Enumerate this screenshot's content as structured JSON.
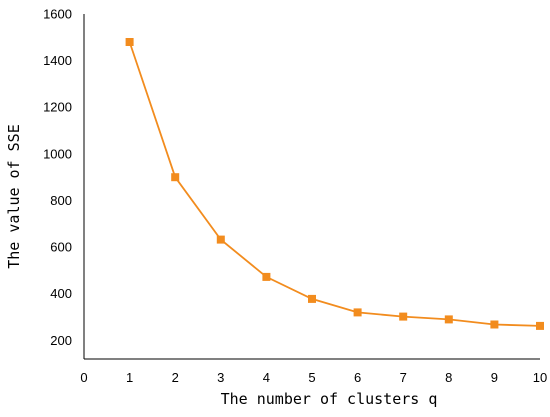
{
  "chart_data": {
    "type": "line",
    "title": "",
    "xlabel": "The number of clusters q",
    "ylabel": "The value of SSE",
    "xlim": [
      0,
      10
    ],
    "ylim": [
      120,
      1600
    ],
    "x_ticks": [
      "0",
      "1",
      "2",
      "3",
      "4",
      "5",
      "6",
      "7",
      "8",
      "9",
      "10"
    ],
    "y_ticks": [
      "200",
      "400",
      "600",
      "800",
      "1000",
      "1200",
      "1400",
      "1600"
    ],
    "grid": false,
    "legend": "none",
    "series": [
      {
        "color": "#F28C1E",
        "marker": "square",
        "x": [
          1,
          2,
          3,
          4,
          5,
          6,
          7,
          8,
          9,
          10
        ],
        "y": [
          1480,
          900,
          632,
          472,
          378,
          320,
          302,
          290,
          268,
          262
        ]
      }
    ]
  }
}
